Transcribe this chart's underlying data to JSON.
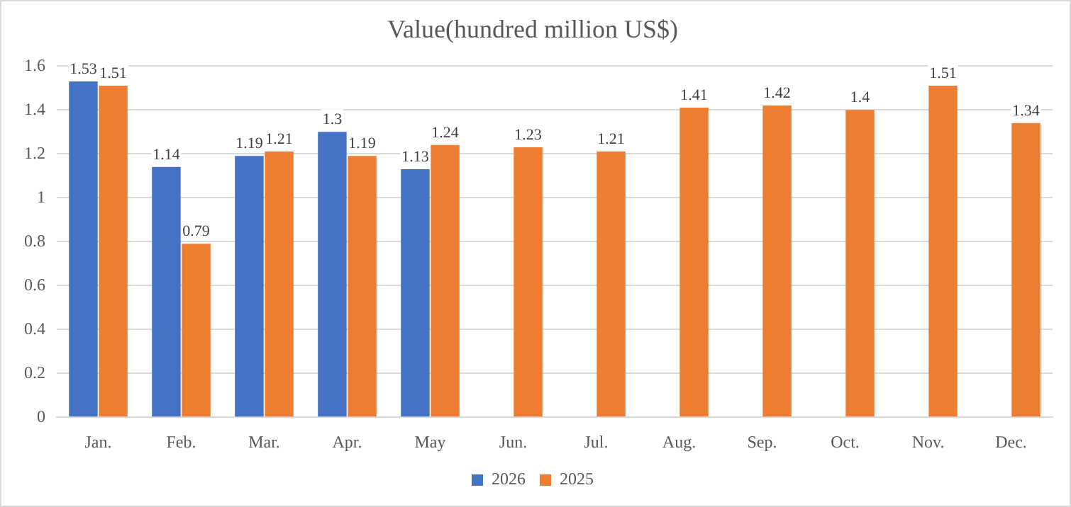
{
  "chart_data": {
    "type": "bar",
    "title": "Value(hundred million US$)",
    "categories": [
      "Jan.",
      "Feb.",
      "Mar.",
      "Apr.",
      "May",
      "Jun.",
      "Jul.",
      "Aug.",
      "Sep.",
      "Oct.",
      "Nov.",
      "Dec."
    ],
    "series": [
      {
        "name": "2026",
        "color": "#4472c4",
        "values": [
          1.53,
          1.14,
          1.19,
          1.3,
          1.13,
          null,
          null,
          null,
          null,
          null,
          null,
          null
        ]
      },
      {
        "name": "2025",
        "color": "#ed7d31",
        "values": [
          1.51,
          0.79,
          1.21,
          1.19,
          1.24,
          1.23,
          1.21,
          1.41,
          1.42,
          1.4,
          1.51,
          1.34
        ]
      }
    ],
    "ylim": [
      0,
      1.6
    ],
    "yticks": [
      0,
      0.2,
      0.4,
      0.6,
      0.8,
      1,
      1.2,
      1.4,
      1.6
    ],
    "grid": "y",
    "legend": "bottom",
    "data_labels": true
  }
}
